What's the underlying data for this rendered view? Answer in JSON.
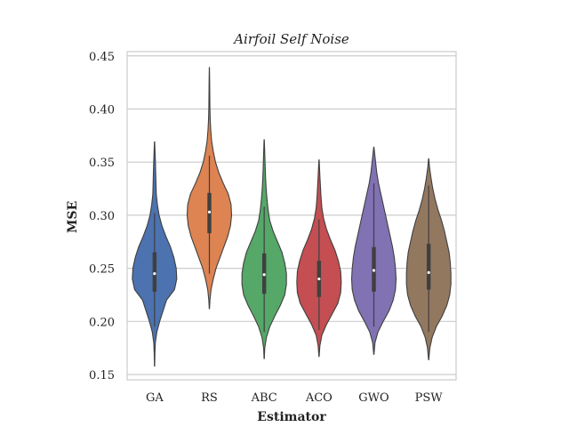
{
  "chart_data": {
    "type": "violin",
    "title": "Airfoil Self Noise",
    "xlabel": "Estimator",
    "ylabel": "MSE",
    "ylim": [
      0.145,
      0.454
    ],
    "yticks": [
      0.15,
      0.2,
      0.25,
      0.3,
      0.35,
      0.4,
      0.45
    ],
    "ytick_labels": [
      "0.15",
      "0.20",
      "0.25",
      "0.30",
      "0.35",
      "0.40",
      "0.45"
    ],
    "grid": true,
    "categories": [
      "GA",
      "RS",
      "ABC",
      "ACO",
      "GWO",
      "PSW"
    ],
    "series": [
      {
        "category": "GA",
        "color": "#4c72b0",
        "min": 0.158,
        "max": 0.369,
        "whisker_low": 0.195,
        "whisker_high": 0.302,
        "q1": 0.228,
        "median": 0.245,
        "q3": 0.265,
        "density": [
          [
            0.158,
            0.002
          ],
          [
            0.17,
            0.006
          ],
          [
            0.18,
            0.014
          ],
          [
            0.19,
            0.04
          ],
          [
            0.2,
            0.09
          ],
          [
            0.21,
            0.15
          ],
          [
            0.22,
            0.21
          ],
          [
            0.23,
            0.35
          ],
          [
            0.24,
            0.39
          ],
          [
            0.25,
            0.38
          ],
          [
            0.26,
            0.34
          ],
          [
            0.27,
            0.28
          ],
          [
            0.28,
            0.2
          ],
          [
            0.29,
            0.13
          ],
          [
            0.3,
            0.08
          ],
          [
            0.31,
            0.05
          ],
          [
            0.32,
            0.03
          ],
          [
            0.33,
            0.025
          ],
          [
            0.34,
            0.02
          ],
          [
            0.35,
            0.015
          ],
          [
            0.36,
            0.008
          ],
          [
            0.369,
            0.002
          ]
        ]
      },
      {
        "category": "RS",
        "color": "#dd8452",
        "min": 0.212,
        "max": 0.439,
        "whisker_low": 0.245,
        "whisker_high": 0.356,
        "q1": 0.283,
        "median": 0.303,
        "q3": 0.321,
        "density": [
          [
            0.212,
            0.002
          ],
          [
            0.22,
            0.01
          ],
          [
            0.23,
            0.03
          ],
          [
            0.24,
            0.07
          ],
          [
            0.25,
            0.12
          ],
          [
            0.26,
            0.19
          ],
          [
            0.27,
            0.26
          ],
          [
            0.28,
            0.33
          ],
          [
            0.29,
            0.38
          ],
          [
            0.3,
            0.4
          ],
          [
            0.31,
            0.39
          ],
          [
            0.32,
            0.34
          ],
          [
            0.33,
            0.25
          ],
          [
            0.34,
            0.17
          ],
          [
            0.35,
            0.11
          ],
          [
            0.36,
            0.07
          ],
          [
            0.37,
            0.04
          ],
          [
            0.38,
            0.025
          ],
          [
            0.39,
            0.015
          ],
          [
            0.4,
            0.01
          ],
          [
            0.41,
            0.008
          ],
          [
            0.42,
            0.006
          ],
          [
            0.43,
            0.004
          ],
          [
            0.439,
            0.001
          ]
        ]
      },
      {
        "category": "ABC",
        "color": "#55a868",
        "min": 0.165,
        "max": 0.371,
        "whisker_low": 0.19,
        "whisker_high": 0.308,
        "q1": 0.226,
        "median": 0.244,
        "q3": 0.264,
        "density": [
          [
            0.165,
            0.002
          ],
          [
            0.175,
            0.01
          ],
          [
            0.185,
            0.04
          ],
          [
            0.195,
            0.1
          ],
          [
            0.205,
            0.19
          ],
          [
            0.215,
            0.29
          ],
          [
            0.225,
            0.37
          ],
          [
            0.235,
            0.4
          ],
          [
            0.245,
            0.4
          ],
          [
            0.255,
            0.37
          ],
          [
            0.265,
            0.32
          ],
          [
            0.275,
            0.24
          ],
          [
            0.285,
            0.16
          ],
          [
            0.295,
            0.1
          ],
          [
            0.305,
            0.07
          ],
          [
            0.315,
            0.05
          ],
          [
            0.325,
            0.035
          ],
          [
            0.335,
            0.025
          ],
          [
            0.345,
            0.018
          ],
          [
            0.355,
            0.012
          ],
          [
            0.365,
            0.006
          ],
          [
            0.371,
            0.002
          ]
        ]
      },
      {
        "category": "ACO",
        "color": "#c44e52",
        "min": 0.167,
        "max": 0.352,
        "whisker_low": 0.192,
        "whisker_high": 0.296,
        "q1": 0.223,
        "median": 0.24,
        "q3": 0.257,
        "density": [
          [
            0.167,
            0.002
          ],
          [
            0.177,
            0.015
          ],
          [
            0.187,
            0.05
          ],
          [
            0.197,
            0.13
          ],
          [
            0.207,
            0.23
          ],
          [
            0.217,
            0.33
          ],
          [
            0.227,
            0.38
          ],
          [
            0.237,
            0.39
          ],
          [
            0.247,
            0.38
          ],
          [
            0.257,
            0.34
          ],
          [
            0.267,
            0.28
          ],
          [
            0.277,
            0.2
          ],
          [
            0.287,
            0.13
          ],
          [
            0.297,
            0.08
          ],
          [
            0.307,
            0.05
          ],
          [
            0.317,
            0.035
          ],
          [
            0.327,
            0.025
          ],
          [
            0.337,
            0.015
          ],
          [
            0.347,
            0.007
          ],
          [
            0.352,
            0.002
          ]
        ]
      },
      {
        "category": "GWO",
        "color": "#8172b3",
        "min": 0.169,
        "max": 0.364,
        "whisker_low": 0.195,
        "whisker_high": 0.33,
        "q1": 0.228,
        "median": 0.248,
        "q3": 0.27,
        "density": [
          [
            0.169,
            0.002
          ],
          [
            0.18,
            0.02
          ],
          [
            0.19,
            0.07
          ],
          [
            0.2,
            0.16
          ],
          [
            0.21,
            0.26
          ],
          [
            0.22,
            0.33
          ],
          [
            0.23,
            0.37
          ],
          [
            0.24,
            0.38
          ],
          [
            0.25,
            0.37
          ],
          [
            0.26,
            0.35
          ],
          [
            0.27,
            0.32
          ],
          [
            0.28,
            0.28
          ],
          [
            0.29,
            0.24
          ],
          [
            0.3,
            0.2
          ],
          [
            0.31,
            0.16
          ],
          [
            0.32,
            0.12
          ],
          [
            0.33,
            0.08
          ],
          [
            0.34,
            0.05
          ],
          [
            0.35,
            0.03
          ],
          [
            0.36,
            0.01
          ],
          [
            0.364,
            0.002
          ]
        ]
      },
      {
        "category": "PSW",
        "color": "#937860",
        "min": 0.164,
        "max": 0.353,
        "whisker_low": 0.19,
        "whisker_high": 0.328,
        "q1": 0.23,
        "median": 0.246,
        "q3": 0.273,
        "density": [
          [
            0.164,
            0.002
          ],
          [
            0.175,
            0.02
          ],
          [
            0.185,
            0.06
          ],
          [
            0.195,
            0.13
          ],
          [
            0.205,
            0.23
          ],
          [
            0.215,
            0.31
          ],
          [
            0.225,
            0.36
          ],
          [
            0.235,
            0.38
          ],
          [
            0.245,
            0.38
          ],
          [
            0.255,
            0.37
          ],
          [
            0.265,
            0.35
          ],
          [
            0.275,
            0.31
          ],
          [
            0.285,
            0.27
          ],
          [
            0.295,
            0.22
          ],
          [
            0.305,
            0.16
          ],
          [
            0.315,
            0.11
          ],
          [
            0.325,
            0.07
          ],
          [
            0.335,
            0.04
          ],
          [
            0.345,
            0.015
          ],
          [
            0.353,
            0.002
          ]
        ]
      }
    ]
  }
}
